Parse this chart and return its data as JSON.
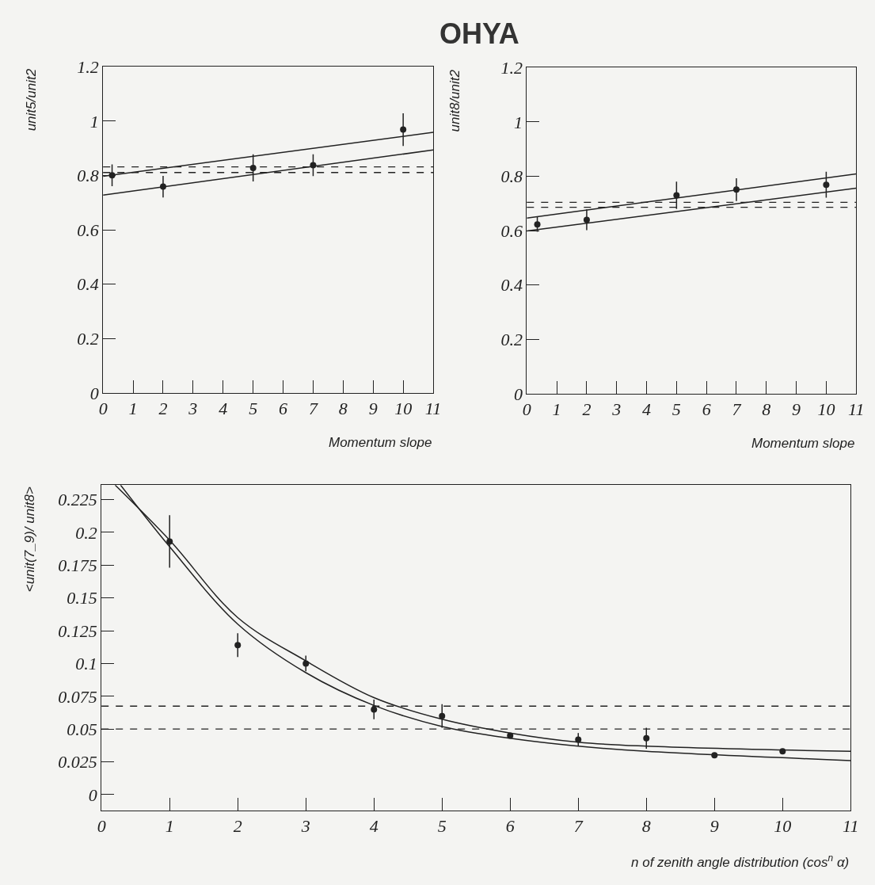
{
  "chart_data": [
    {
      "type": "scatter",
      "title": "OHYA",
      "xlabel": "Momentum slope",
      "ylabel": "unit5/unit2",
      "xlim": [
        0,
        11
      ],
      "ylim": [
        0,
        1.2
      ],
      "xticks": [
        0,
        1,
        2,
        3,
        4,
        5,
        6,
        7,
        8,
        9,
        10,
        11
      ],
      "yticks": [
        0,
        0.2,
        0.4,
        0.6,
        0.8,
        1,
        1.2
      ],
      "grid": false,
      "series": [
        {
          "marker": "circle",
          "color": "#222222",
          "x": [
            0.3,
            2,
            5,
            7,
            10
          ],
          "values": [
            0.801,
            0.759,
            0.828,
            0.838,
            0.969
          ],
          "errors": [
            0.04,
            0.04,
            0.05,
            0.04,
            0.06
          ]
        },
        {
          "type": "line",
          "line_style": "solid",
          "color": "#222222",
          "x": [
            0,
            11
          ],
          "values": [
            0.797,
            0.959
          ]
        },
        {
          "type": "line",
          "line_style": "solid",
          "color": "#222222",
          "x": [
            0,
            11
          ],
          "values": [
            0.728,
            0.894
          ]
        }
      ],
      "ref_lines": [
        {
          "axis": "y",
          "value": 0.832,
          "line_style": "dashed",
          "color": "#222222"
        },
        {
          "axis": "y",
          "value": 0.811,
          "line_style": "dashed",
          "color": "#222222"
        }
      ]
    },
    {
      "type": "scatter",
      "xlabel": "Momentum slope",
      "ylabel": "unit8/unit2",
      "xlim": [
        0,
        11
      ],
      "ylim": [
        0,
        1.2
      ],
      "xticks": [
        0,
        1,
        2,
        3,
        4,
        5,
        6,
        7,
        8,
        9,
        10,
        11
      ],
      "yticks": [
        0,
        0.2,
        0.4,
        0.6,
        0.8,
        1,
        1.2
      ],
      "grid": false,
      "series": [
        {
          "marker": "circle",
          "color": "#222222",
          "x": [
            0.35,
            2,
            5,
            7,
            10
          ],
          "values": [
            0.623,
            0.64,
            0.73,
            0.751,
            0.769
          ],
          "errors": [
            0.027,
            0.038,
            0.05,
            0.042,
            0.048
          ]
        },
        {
          "type": "line",
          "line_style": "solid",
          "color": "#222222",
          "x": [
            0,
            11
          ],
          "values": [
            0.646,
            0.809
          ]
        },
        {
          "type": "line",
          "line_style": "solid",
          "color": "#222222",
          "x": [
            0,
            11
          ],
          "values": [
            0.599,
            0.756
          ]
        }
      ],
      "ref_lines": [
        {
          "axis": "y",
          "value": 0.704,
          "line_style": "dashed",
          "color": "#222222"
        },
        {
          "axis": "y",
          "value": 0.686,
          "line_style": "dashed",
          "color": "#222222"
        }
      ]
    },
    {
      "type": "scatter",
      "xlabel": "n of zenith angle distribution (cos$^{n}$ α)",
      "ylabel": "<unit(7_9)/ unit8>",
      "xlim": [
        0,
        11
      ],
      "ylim": [
        -0.012,
        0.236
      ],
      "xticks": [
        0,
        1,
        2,
        3,
        4,
        5,
        6,
        7,
        8,
        9,
        10,
        11
      ],
      "yticks": [
        0,
        0.025,
        0.05,
        0.075,
        0.1,
        0.125,
        0.15,
        0.175,
        0.2,
        0.225
      ],
      "grid": false,
      "series": [
        {
          "marker": "circle",
          "color": "#222222",
          "x": [
            1,
            2,
            3,
            4,
            5,
            6,
            7,
            8,
            9,
            10
          ],
          "values": [
            0.193,
            0.114,
            0.1,
            0.065,
            0.06,
            0.045,
            0.042,
            0.043,
            0.03,
            0.033
          ],
          "errors": [
            0.02,
            0.009,
            0.006,
            0.0075,
            0.009,
            0.002,
            0.005,
            0.008,
            0.002,
            0.002
          ]
        },
        {
          "type": "line",
          "line_style": "solid",
          "color": "#222222",
          "x": [
            0.2,
            1,
            2,
            3,
            4,
            5,
            6,
            7,
            8,
            11
          ],
          "values": [
            0.236,
            0.194,
            0.135,
            0.102,
            0.074,
            0.0575,
            0.047,
            0.04,
            0.037,
            0.033
          ]
        },
        {
          "type": "line",
          "line_style": "solid",
          "color": "#222222",
          "x": [
            0.28,
            1,
            2,
            3,
            4,
            5,
            6,
            7,
            8,
            11
          ],
          "values": [
            0.236,
            0.189,
            0.13,
            0.093,
            0.068,
            0.052,
            0.043,
            0.037,
            0.033,
            0.026
          ]
        }
      ],
      "ref_lines": [
        {
          "axis": "y",
          "value": 0.0675,
          "line_style": "dashed",
          "color": "#222222"
        },
        {
          "axis": "y",
          "value": 0.05,
          "line_style": "dashed",
          "color": "#222222"
        }
      ]
    }
  ]
}
